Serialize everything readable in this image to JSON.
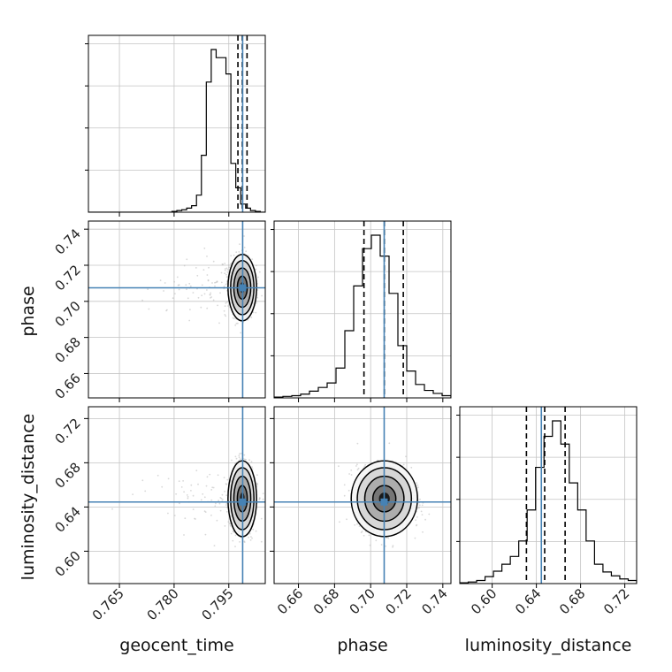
{
  "chart_data": {
    "type": "corner",
    "parameters": [
      "geocent_time",
      "phase",
      "luminosity_distance"
    ],
    "truths": {
      "geocent_time": 0.7988,
      "phase": 0.7075,
      "luminosity_distance": 0.6445
    },
    "quantiles": {
      "geocent_time": [
        0.7975,
        0.7987,
        0.8
      ],
      "phase": [
        0.6963,
        0.7076,
        0.7181
      ],
      "luminosity_distance": [
        0.631,
        0.6475,
        0.666
      ]
    },
    "ranges": {
      "geocent_time": [
        0.7565,
        0.805
      ],
      "phase": [
        0.6465,
        0.7445
      ],
      "luminosity_distance": [
        0.5707,
        0.7307
      ]
    },
    "ticks": {
      "geocent_time": [
        "0.765",
        "0.780",
        "0.795"
      ],
      "phase": [
        "0.66",
        "0.68",
        "0.70",
        "0.72",
        "0.74"
      ],
      "luminosity_distance": [
        "0.60",
        "0.64",
        "0.68",
        "0.72"
      ]
    },
    "histograms": {
      "geocent_time": {
        "edges_range": [
          0.7565,
          0.805
        ],
        "counts": [
          0,
          0,
          0,
          0,
          0,
          0,
          0,
          0,
          0,
          0,
          0,
          0,
          0,
          0,
          0,
          0,
          0,
          1,
          2,
          3,
          5,
          8,
          21,
          70,
          160,
          200,
          190,
          190,
          170,
          60,
          30,
          10,
          5,
          2,
          1,
          0
        ]
      },
      "phase": {
        "edges_range": [
          0.6465,
          0.7445
        ],
        "counts": [
          1,
          2,
          3,
          5,
          9,
          14,
          20,
          40,
          90,
          150,
          200,
          218,
          190,
          140,
          70,
          36,
          18,
          10,
          6,
          3
        ]
      },
      "luminosity_distance": {
        "edges_range": [
          0.5707,
          0.7307
        ],
        "counts": [
          1,
          2,
          4,
          9,
          16,
          25,
          35,
          55,
          95,
          150,
          190,
          210,
          180,
          130,
          95,
          55,
          25,
          15,
          10,
          6,
          4
        ]
      }
    },
    "grid": true,
    "colors": {
      "truth": "#4682b4",
      "hist": "#000000",
      "quantile": "#000000",
      "points": "#b8b8b8",
      "grid": "#c4c4c4"
    }
  }
}
